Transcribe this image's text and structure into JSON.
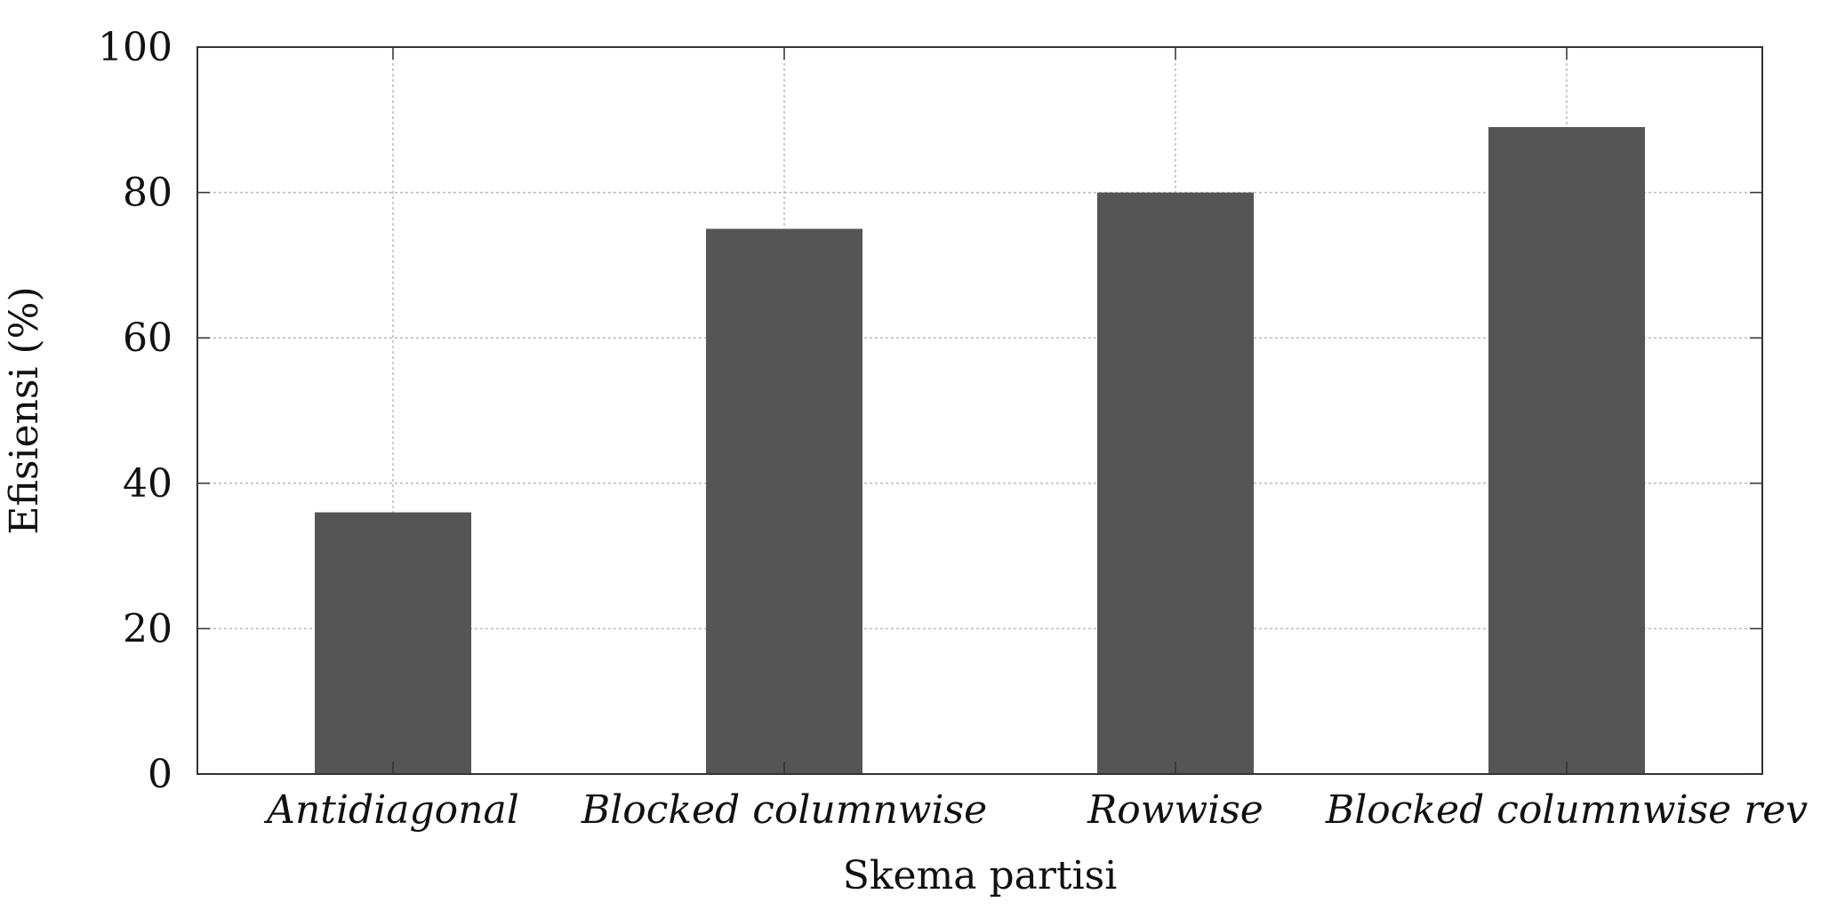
{
  "chart_data": {
    "type": "bar",
    "title": "",
    "xlabel": "Skema partisi",
    "ylabel": "Efisiensi (%)",
    "categories": [
      "Antidiagonal",
      "Blocked columnwise",
      "Rowwise",
      "Blocked columnwise rev"
    ],
    "values": [
      36,
      75,
      80,
      89
    ],
    "ylim": [
      0,
      100
    ],
    "yticks": [
      0,
      20,
      40,
      60,
      80,
      100
    ],
    "grid": true,
    "bar_color": "#555555",
    "grid_color": "#bbbbbb",
    "axis_color": "#333333"
  }
}
